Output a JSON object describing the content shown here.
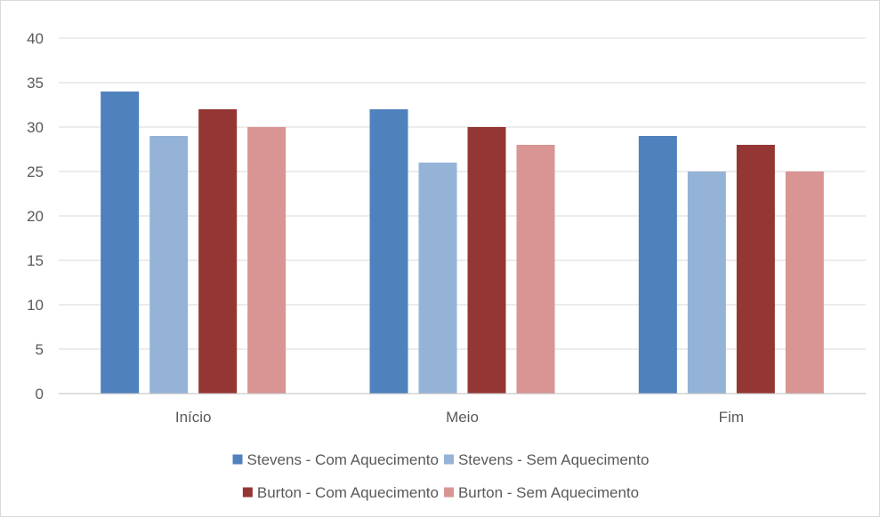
{
  "chart_data": {
    "type": "bar",
    "categories": [
      "Início",
      "Meio",
      "Fim"
    ],
    "series": [
      {
        "name": "Stevens - Com Aquecimento",
        "values": [
          34,
          32,
          29
        ],
        "color": "#4f81bd"
      },
      {
        "name": "Stevens - Sem Aquecimento",
        "values": [
          29,
          26,
          25
        ],
        "color": "#95b3d7"
      },
      {
        "name": "Burton - Com Aquecimento",
        "values": [
          32,
          30,
          28
        ],
        "color": "#943634"
      },
      {
        "name": "Burton - Sem Aquecimento",
        "values": [
          30,
          28,
          25
        ],
        "color": "#d99594"
      }
    ],
    "ylim": [
      0,
      40
    ],
    "yticks": [
      0,
      5,
      10,
      15,
      20,
      25,
      30,
      35,
      40
    ],
    "grid": true,
    "legend_position": "bottom",
    "title": "",
    "xlabel": "",
    "ylabel": ""
  }
}
